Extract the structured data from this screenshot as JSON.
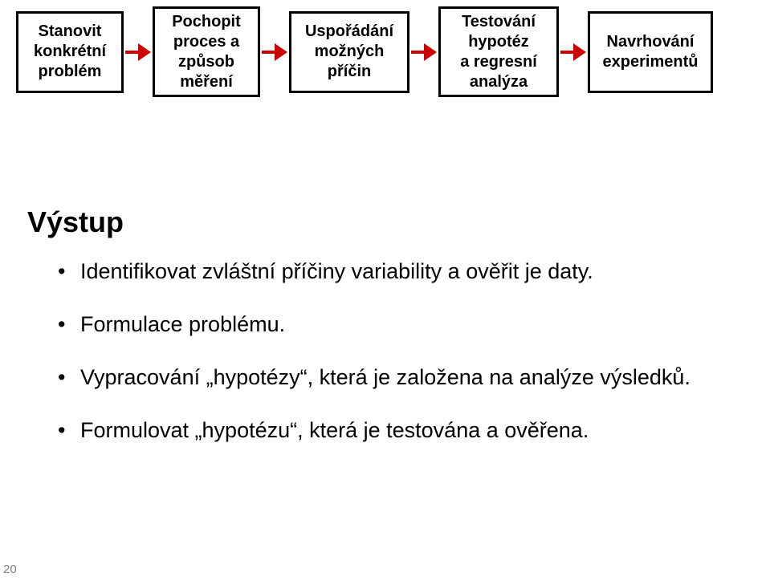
{
  "flow": {
    "border_color": "#000000",
    "arrow_color": "#cc0000",
    "text_color": "#000000",
    "boxes": [
      {
        "lines": [
          "Stanovit",
          "konkrétní",
          "problém"
        ]
      },
      {
        "lines": [
          "Pochopit",
          "proces a",
          "způsob",
          "měření"
        ]
      },
      {
        "lines": [
          "Uspořádání",
          "možných",
          "příčin"
        ]
      },
      {
        "lines": [
          "Testování",
          "hypotéz",
          "a regresní",
          "analýza"
        ]
      },
      {
        "lines": [
          "Navrhování",
          "experimentů"
        ]
      }
    ]
  },
  "heading": "Výstup",
  "heading_color": "#000000",
  "bullets": [
    "Identifikovat zvláštní příčiny variability a ověřit je daty.",
    "Formulace problému.",
    "Vypracování „hypotézy“, která je založena na analýze výsledků.",
    "Formulovat „hypotézu“, která je testována a ověřena."
  ],
  "bullet_color": "#000000",
  "page_number": "20",
  "page_number_color": "#808080",
  "background_color": "#ffffff"
}
